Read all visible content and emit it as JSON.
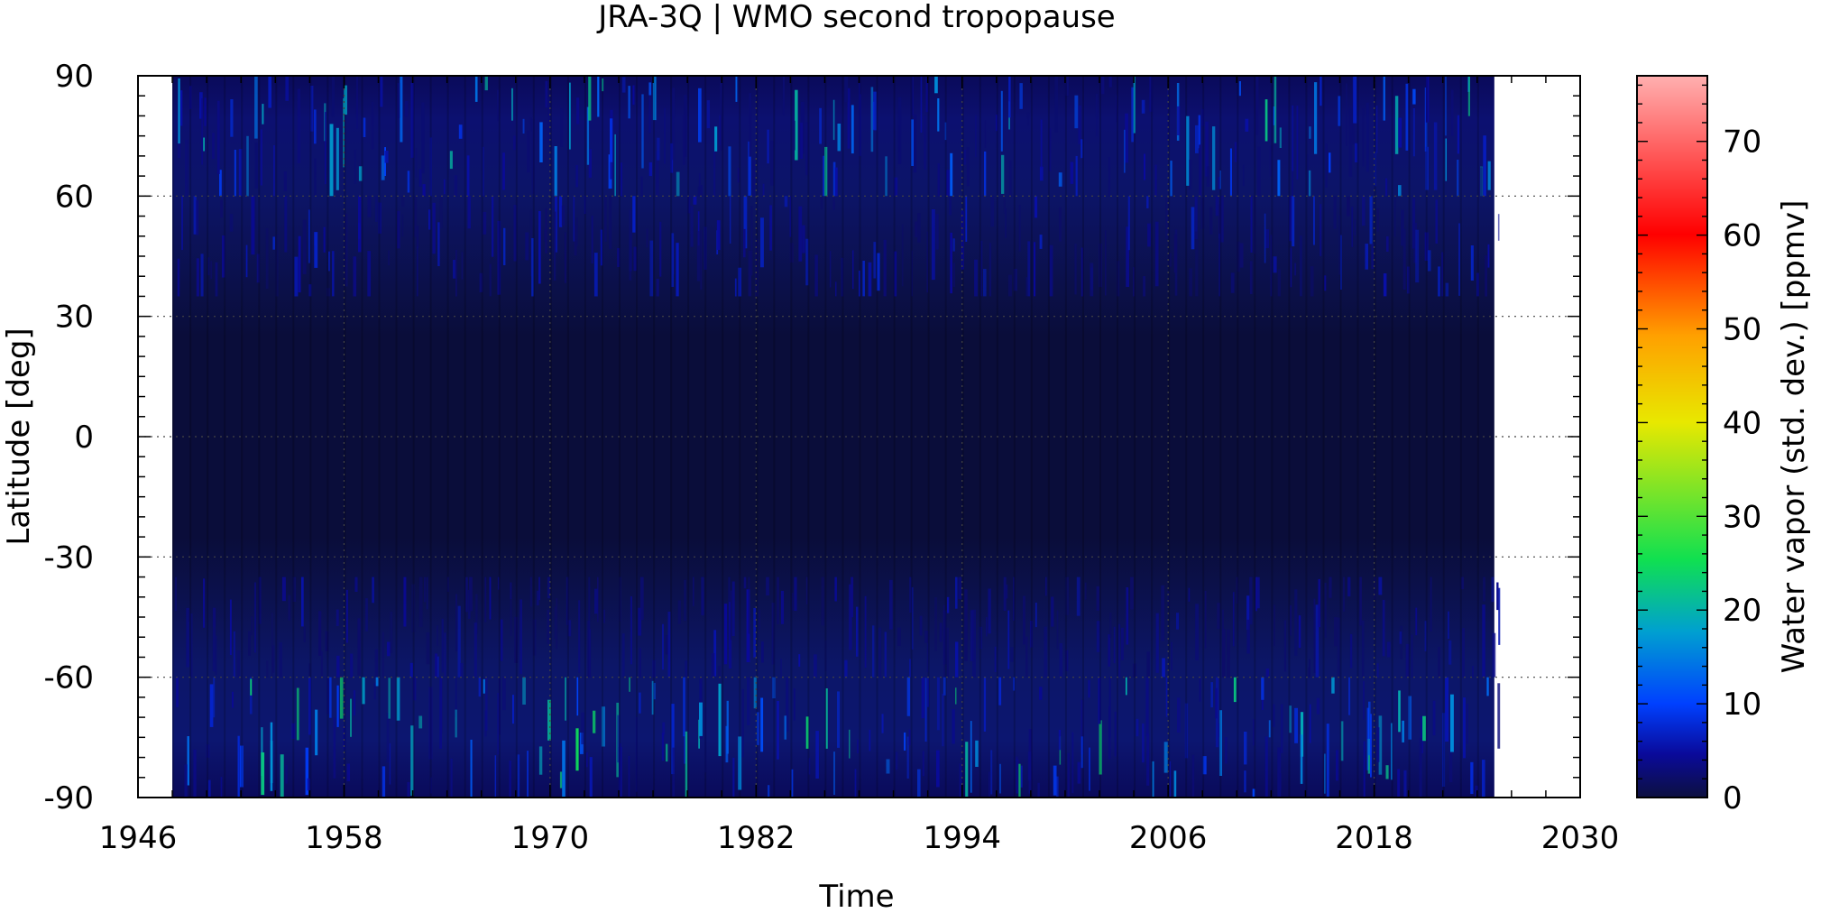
{
  "chart_data": {
    "type": "heatmap",
    "title": "JRA-3Q | WMO second tropopause",
    "xlabel": "Time",
    "ylabel": "Latitude [deg]",
    "colorbar_label": "Water vapor (std. dev.) [ppmv]",
    "xlim": [
      1946,
      2030
    ],
    "ylim": [
      -90,
      90
    ],
    "x_ticks": [
      1946,
      1958,
      1970,
      1982,
      1994,
      2006,
      2018,
      2030
    ],
    "y_ticks": [
      -90,
      -60,
      -30,
      0,
      30,
      60,
      90
    ],
    "colorbar_range": [
      0,
      77
    ],
    "colorbar_ticks": [
      0,
      10,
      20,
      30,
      40,
      50,
      60,
      70
    ],
    "data_extent": {
      "time_start": 1948,
      "time_end": 2025
    },
    "grid": "dotted",
    "latitude_bands": [
      {
        "lat_from": 60,
        "lat_to": 90,
        "typical_value": 5,
        "peak_value": 35
      },
      {
        "lat_from": 35,
        "lat_to": 60,
        "typical_value": 4,
        "peak_value": 15
      },
      {
        "lat_from": -35,
        "lat_to": 35,
        "typical_value": 1,
        "peak_value": 3
      },
      {
        "lat_from": -60,
        "lat_to": -35,
        "typical_value": 4,
        "peak_value": 12
      },
      {
        "lat_from": -90,
        "lat_to": -60,
        "typical_value": 6,
        "peak_value": 38
      }
    ],
    "colormap": [
      "#0d1040",
      "#0a0a9a",
      "#0040ff",
      "#00a0d0",
      "#10e050",
      "#e8e800",
      "#ffa000",
      "#ff0000",
      "#ffb0b0"
    ]
  }
}
